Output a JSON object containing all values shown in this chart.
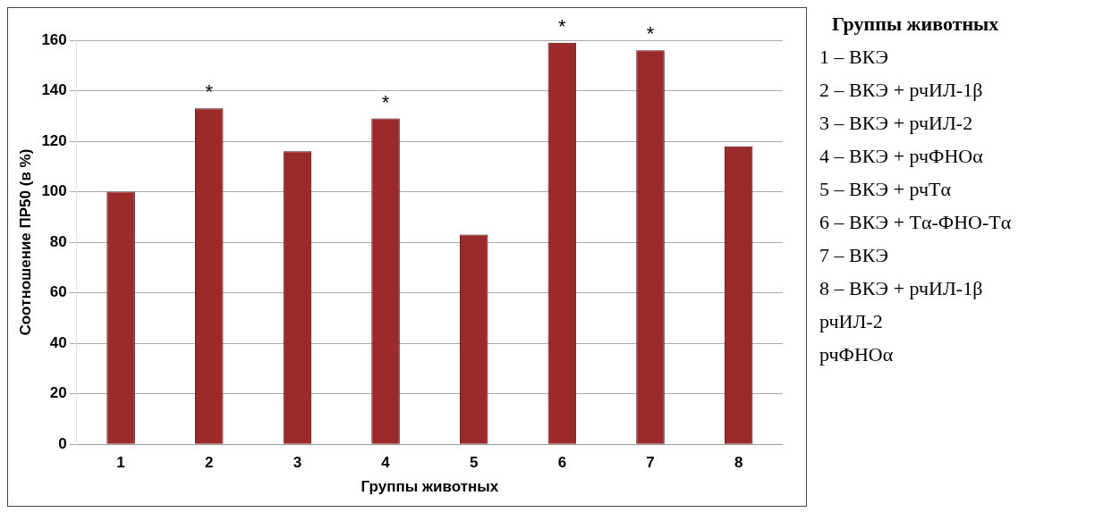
{
  "chart_data": {
    "type": "bar",
    "xlabel": "Группы животных",
    "ylabel": "Соотношение ПР50 (в %)",
    "categories": [
      "1",
      "2",
      "3",
      "4",
      "5",
      "6",
      "7",
      "8"
    ],
    "values": [
      100,
      133,
      116,
      129,
      83,
      159,
      156,
      118
    ],
    "color": "#9b2a2a",
    "ylim": [
      0,
      160
    ],
    "yticks": [
      0,
      20,
      40,
      60,
      80,
      100,
      120,
      140,
      160
    ],
    "grid": "y",
    "annotations": [
      {
        "text": "*",
        "x": "2",
        "y": 133
      },
      {
        "text": "*",
        "x": "4",
        "y": 129
      },
      {
        "text": "*",
        "x": "6",
        "y": 159
      },
      {
        "text": "*",
        "x": "7",
        "y": 156
      },
      "Группы животных",
      "1 – ВКЭ",
      "2 – ВКЭ + рчИЛ-1β",
      "3 – ВКЭ + рчИЛ-2",
      "4 – ВКЭ + рчФНОα",
      "5 – ВКЭ + рчTα",
      "6 – ВКЭ + Tα-ФНО-Tα",
      "7 – ВКЭ",
      "8 – ВКЭ + рчИЛ-1β\nрчИЛ-2\nрчФНОα"
    ]
  }
}
